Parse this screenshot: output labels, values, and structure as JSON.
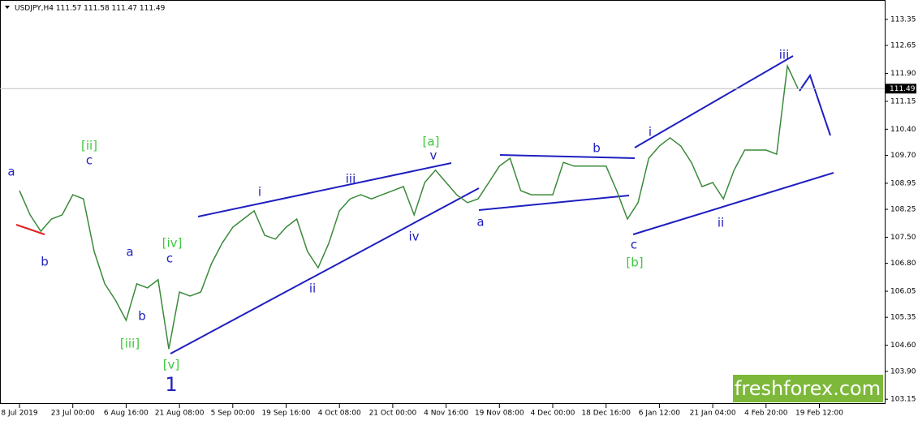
{
  "chart_data": {
    "type": "line",
    "title": "USDJPY,H4  111.57 111.58 111.47 111.49",
    "categories": [
      "8 Jul 2019",
      null,
      null,
      null,
      null,
      "23 Jul 00:00",
      null,
      null,
      null,
      null,
      "6 Aug 16:00",
      null,
      null,
      null,
      null,
      "21 Aug 08:00",
      null,
      null,
      null,
      null,
      "5 Sep 00:00",
      null,
      null,
      null,
      null,
      "19 Sep 16:00",
      null,
      null,
      null,
      null,
      "4 Oct 08:00",
      null,
      null,
      null,
      null,
      "21 Oct 00:00",
      null,
      null,
      null,
      null,
      "4 Nov 16:00",
      null,
      null,
      null,
      null,
      "19 Nov 08:00",
      null,
      null,
      null,
      null,
      "4 Dec 00:00",
      null,
      null,
      null,
      null,
      "18 Dec 16:00",
      null,
      null,
      null,
      null,
      "6 Jan 12:00",
      null,
      null,
      null,
      null,
      "21 Jan 04:00",
      null,
      null,
      null,
      null,
      "4 Feb 20:00",
      null,
      null,
      null,
      null,
      "19 Feb 12:00"
    ],
    "series": [
      {
        "name": "USDJPY",
        "color": "#3a8a3a",
        "values": [
          108.75,
          108.1,
          107.66,
          107.99,
          108.1,
          108.64,
          108.53,
          107.12,
          106.25,
          105.81,
          105.27,
          106.25,
          106.14,
          106.36,
          104.5,
          106.03,
          105.92,
          106.03,
          106.79,
          107.34,
          107.77,
          107.99,
          108.21,
          107.55,
          107.45,
          107.77,
          107.99,
          107.12,
          106.68,
          107.34,
          108.21,
          108.53,
          108.64,
          108.53,
          108.64,
          108.75,
          108.86,
          108.1,
          108.97,
          109.3,
          108.97,
          108.64,
          108.43,
          108.53,
          108.97,
          109.41,
          109.62,
          108.75,
          108.64,
          108.64,
          108.64,
          109.51,
          109.41,
          109.41,
          109.41,
          109.41,
          108.75,
          107.99,
          108.43,
          109.62,
          109.95,
          110.17,
          109.95,
          109.51,
          108.86,
          108.97,
          108.53,
          109.3,
          109.84,
          109.84,
          109.84,
          109.73,
          112.1,
          111.49,
          null,
          null
        ]
      }
    ],
    "current_price": 111.49,
    "ylim": [
      102.98,
      113.87
    ],
    "yticks": [
      113.35,
      112.65,
      {
        "value": 111.9,
        "label": "111.90"
      },
      111.15,
      {
        "value": 110.4,
        "label": "110.40"
      },
      {
        "value": 109.7,
        "label": "109.70"
      },
      108.95,
      108.25,
      {
        "value": 107.5,
        "label": "107.50"
      },
      {
        "value": 106.8,
        "label": "106.80"
      },
      106.05,
      105.35,
      {
        "value": 104.6,
        "label": "104.60"
      },
      {
        "value": 103.9,
        "label": "103.90"
      },
      103.15
    ],
    "grid": false,
    "annotations": [
      "a",
      "b",
      "[ii]",
      "c",
      "a",
      "b",
      "[iii]",
      "[iv]",
      "c",
      "[v]",
      "1",
      "i",
      "ii",
      "iii",
      "iv",
      "[a]",
      "v",
      "a",
      "b",
      "i",
      "c",
      "[b]",
      "ii",
      "iii"
    ],
    "watermark": "freshforex.com"
  }
}
